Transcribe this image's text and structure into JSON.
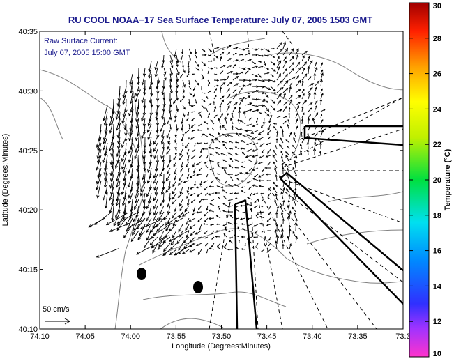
{
  "header": {
    "title": "RU COOL  NOAA−17  Sea Surface Temperature:  July 07, 2005 1503 GMT"
  },
  "annotation": {
    "line1": "Raw Surface Current:",
    "line2": "July 07, 2005 15:00 GMT",
    "scale_label": "50 cm/s"
  },
  "axes": {
    "xlabel": "Longitude (Degrees:Minutes)",
    "ylabel": "Latitude (Degrees:Minutes)",
    "x_ticks": [
      "74:10",
      "74:05",
      "74:00",
      "73:55",
      "73:50",
      "73:45",
      "73:40",
      "73:35",
      "73:3"
    ],
    "y_ticks": [
      "40:35",
      "40:30",
      "40:25",
      "40:20",
      "40:15",
      "40:10"
    ]
  },
  "colorbar": {
    "label": "Temperature (°C)",
    "ticks": [
      "30",
      "28",
      "26",
      "24",
      "22",
      "20",
      "18",
      "16",
      "14",
      "12",
      "10"
    ],
    "range": [
      10,
      30
    ]
  },
  "colors": {
    "title": "#1a1a8c",
    "land_outline": "#808080",
    "vectors": "#000000"
  }
}
